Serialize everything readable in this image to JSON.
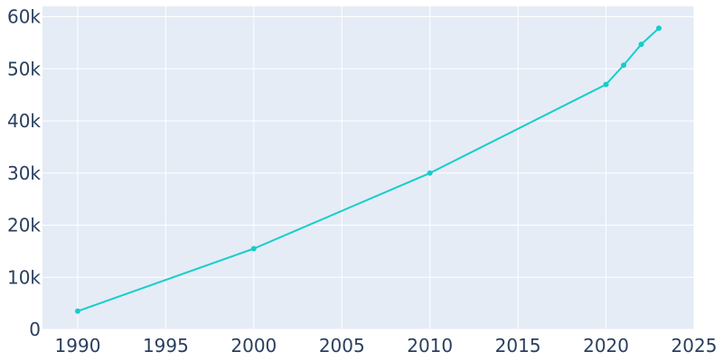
{
  "chart_data": {
    "type": "line",
    "title": "",
    "xlabel": "",
    "ylabel": "",
    "xlim": [
      1988,
      2025
    ],
    "ylim": [
      0,
      62000
    ],
    "grid": true,
    "legend": "none",
    "colors": {
      "plot_bg": "#e5ecf6",
      "grid": "#ffffff",
      "line": "#17cdc9",
      "text": "#2a3f5f"
    },
    "x_ticks": [
      1990,
      1995,
      2000,
      2005,
      2010,
      2015,
      2020,
      2025
    ],
    "x_tick_labels": [
      "1990",
      "1995",
      "2000",
      "2005",
      "2010",
      "2015",
      "2020",
      "2025"
    ],
    "y_ticks": [
      0,
      10000,
      20000,
      30000,
      40000,
      50000,
      60000
    ],
    "y_tick_labels": [
      "0",
      "10k",
      "20k",
      "30k",
      "40k",
      "50k",
      "60k"
    ],
    "series": [
      {
        "x": [
          1990,
          2000,
          2010,
          2020,
          2021,
          2022,
          2023
        ],
        "values": [
          3500,
          15500,
          30000,
          47000,
          50700,
          54700,
          57800
        ]
      }
    ]
  }
}
